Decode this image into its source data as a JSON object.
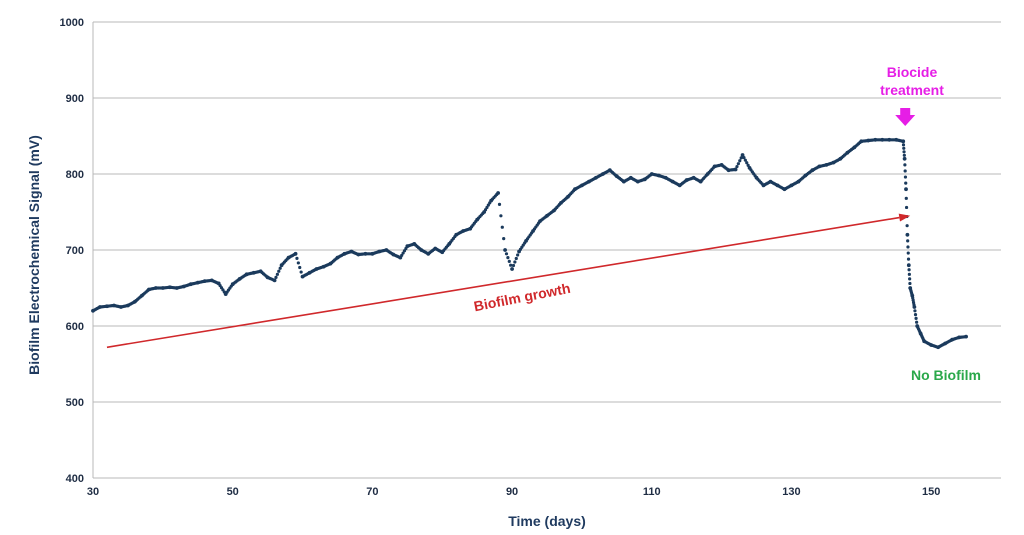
{
  "chart_data": {
    "type": "scatter",
    "title": "",
    "xlabel": "Time (days)",
    "ylabel": "Biofilm Electrochemical Signal (mV)",
    "xlim": [
      30,
      160
    ],
    "ylim": [
      400,
      1000
    ],
    "xticks": [
      30,
      50,
      70,
      90,
      110,
      130,
      150
    ],
    "yticks": [
      400,
      500,
      600,
      700,
      800,
      900,
      1000
    ],
    "grid": true,
    "series": [
      {
        "color": "#1b3a5c",
        "x": [
          30,
          31,
          32,
          33,
          34,
          35,
          36,
          37,
          38,
          39,
          40,
          41,
          42,
          43,
          44,
          45,
          46,
          47,
          48,
          49,
          50,
          51,
          52,
          53,
          54,
          55,
          56,
          57,
          58,
          59,
          60,
          61,
          62,
          63,
          64,
          65,
          66,
          67,
          68,
          69,
          70,
          71,
          72,
          73,
          74,
          75,
          76,
          77,
          78,
          79,
          80,
          81,
          82,
          83,
          84,
          85,
          86,
          87,
          88,
          89,
          90,
          91,
          92,
          93,
          94,
          95,
          96,
          97,
          98,
          99,
          100,
          101,
          102,
          103,
          104,
          105,
          106,
          107,
          108,
          109,
          110,
          111,
          112,
          113,
          114,
          115,
          116,
          117,
          118,
          119,
          120,
          121,
          122,
          123,
          124,
          125,
          126,
          127,
          128,
          129,
          130,
          131,
          132,
          133,
          134,
          135,
          136,
          137,
          138,
          139,
          140,
          141,
          142,
          143,
          144,
          145,
          146,
          146.2,
          146.4,
          146.6,
          146.8,
          147,
          147.3,
          147.6,
          148,
          148.5,
          149,
          150,
          151,
          152,
          153,
          154,
          155
        ],
        "y": [
          620,
          625,
          626,
          627,
          625,
          627,
          632,
          640,
          648,
          650,
          650,
          651,
          650,
          652,
          655,
          657,
          659,
          660,
          656,
          642,
          655,
          662,
          668,
          670,
          672,
          664,
          660,
          680,
          690,
          695,
          665,
          670,
          675,
          678,
          682,
          690,
          695,
          698,
          694,
          695,
          695,
          698,
          700,
          694,
          690,
          705,
          708,
          700,
          695,
          702,
          697,
          708,
          720,
          725,
          728,
          740,
          750,
          765,
          775,
          700,
          675,
          698,
          712,
          725,
          738,
          745,
          752,
          762,
          770,
          780,
          785,
          790,
          795,
          800,
          805,
          797,
          790,
          795,
          790,
          793,
          800,
          798,
          795,
          790,
          785,
          792,
          795,
          790,
          800,
          810,
          812,
          805,
          806,
          825,
          808,
          795,
          785,
          790,
          785,
          780,
          785,
          790,
          798,
          805,
          810,
          812,
          815,
          820,
          828,
          835,
          843,
          844,
          845,
          845,
          845,
          845,
          843,
          820,
          780,
          720,
          680,
          650,
          640,
          625,
          600,
          590,
          580,
          575,
          572,
          577,
          582,
          585,
          586
        ]
      }
    ],
    "annotations": {
      "trend_label": "Biofilm growth",
      "treatment_label_line1": "Biocide",
      "treatment_label_line2": "treatment",
      "after_label": "No Biofilm",
      "trend_color": "#d0282b",
      "treatment_color": "#e61ee6",
      "after_color": "#2aa84a",
      "trend_start": [
        32,
        572
      ],
      "trend_end": [
        147,
        745
      ],
      "treatment_day": 146
    }
  }
}
